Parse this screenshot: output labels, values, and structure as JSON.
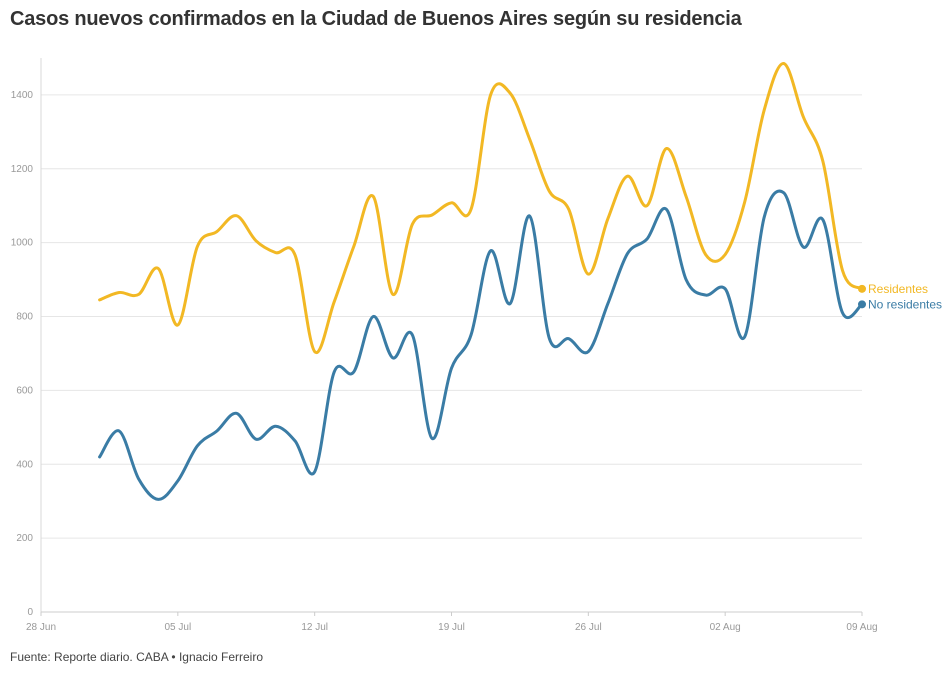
{
  "title": "Casos nuevos confirmados en la Ciudad de Buenos Aires según su residencia",
  "footer": "Fuente: Reporte diario. CABA • Ignacio Ferreiro",
  "chart_data": {
    "type": "line",
    "title": "Casos nuevos confirmados en la Ciudad de Buenos Aires según su residencia",
    "xlabel": "",
    "ylabel": "",
    "x_ticks": [
      "28 Jun",
      "05 Jul",
      "12 Jul",
      "19 Jul",
      "26 Jul",
      "02 Aug",
      "09 Aug"
    ],
    "x_start_label": "28 Jun",
    "x_end_label": "09 Aug",
    "y_ticks": [
      0,
      200,
      400,
      600,
      800,
      1000,
      1200,
      1400
    ],
    "ylim": [
      0,
      1500
    ],
    "grid": "horizontal",
    "legend": "end-of-line labels",
    "x": [
      "2020-07-01",
      "2020-07-02",
      "2020-07-03",
      "2020-07-04",
      "2020-07-05",
      "2020-07-06",
      "2020-07-07",
      "2020-07-08",
      "2020-07-09",
      "2020-07-10",
      "2020-07-11",
      "2020-07-12",
      "2020-07-13",
      "2020-07-14",
      "2020-07-15",
      "2020-07-16",
      "2020-07-17",
      "2020-07-18",
      "2020-07-19",
      "2020-07-20",
      "2020-07-21",
      "2020-07-22",
      "2020-07-23",
      "2020-07-24",
      "2020-07-25",
      "2020-07-26",
      "2020-07-27",
      "2020-07-28",
      "2020-07-29",
      "2020-07-30",
      "2020-07-31",
      "2020-08-01",
      "2020-08-02",
      "2020-08-03",
      "2020-08-04",
      "2020-08-05",
      "2020-08-06",
      "2020-08-07",
      "2020-08-08",
      "2020-08-09"
    ],
    "series": [
      {
        "name": "Residentes",
        "color": "#f2b824",
        "values": [
          845,
          865,
          860,
          930,
          777,
          990,
          1030,
          1073,
          1005,
          973,
          966,
          705,
          840,
          990,
          1125,
          860,
          1050,
          1075,
          1108,
          1090,
          1400,
          1405,
          1280,
          1140,
          1090,
          915,
          1065,
          1180,
          1100,
          1255,
          1125,
          968,
          968,
          1110,
          1360,
          1485,
          1340,
          1220,
          925,
          875
        ]
      },
      {
        "name": "No residentes",
        "color": "#3a7ca5",
        "values": [
          420,
          490,
          360,
          305,
          355,
          450,
          490,
          538,
          468,
          503,
          463,
          380,
          650,
          650,
          800,
          688,
          750,
          470,
          660,
          750,
          978,
          835,
          1072,
          742,
          740,
          705,
          835,
          970,
          1010,
          1090,
          900,
          858,
          875,
          745,
          1070,
          1135,
          988,
          1062,
          810,
          833
        ]
      }
    ]
  }
}
